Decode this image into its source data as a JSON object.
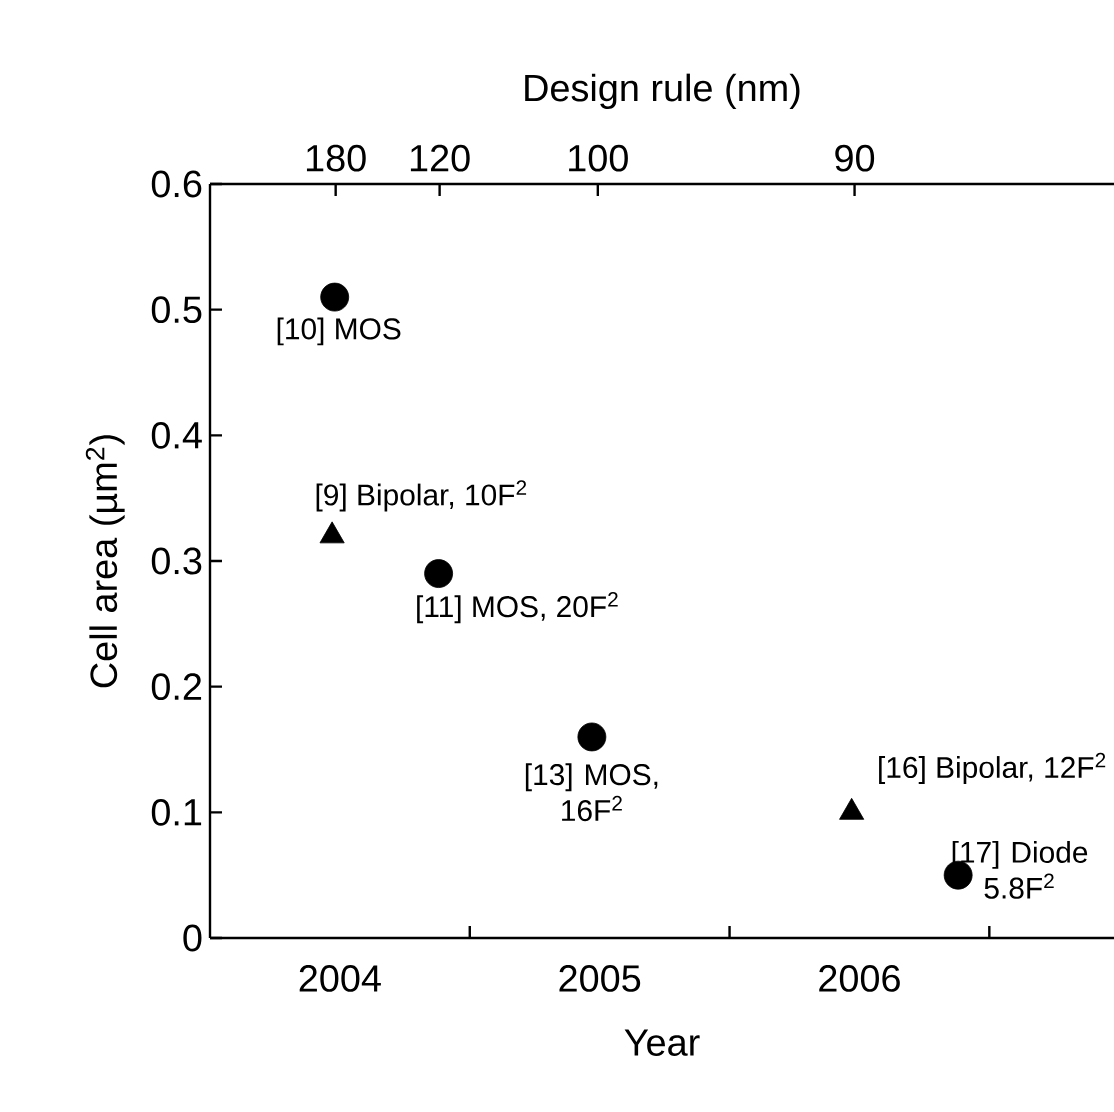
{
  "chart_data": {
    "type": "scatter",
    "xlabel": "Year",
    "ylabel": "Cell area (µm$^{2}$)",
    "x2label": "Design rule (nm)",
    "xlim": [
      2004,
      2007.48
    ],
    "ylim": [
      0,
      0.6
    ],
    "xticks": [
      {
        "value": 2005,
        "label": null
      },
      {
        "value": 2006,
        "label": null
      },
      {
        "value": 2007,
        "label": null
      },
      {
        "value": 2004.5,
        "label": "2004"
      },
      {
        "value": 2005.5,
        "label": "2005"
      },
      {
        "value": 2006.5,
        "label": "2006"
      }
    ],
    "yticks": [
      0,
      0.1,
      0.2,
      0.3,
      0.4,
      0.5,
      0.6
    ],
    "grid": false,
    "legend": false,
    "series": [
      {
        "color": "#000000",
        "marker": "circle",
        "x": [
          2004.48,
          2004.88,
          2005.47,
          2006.88
        ],
        "values": [
          0.51,
          0.29,
          0.16,
          0.05
        ]
      },
      {
        "color": "#000000",
        "marker": "triangle",
        "x": [
          2004.47,
          2006.47
        ],
        "values": [
          0.32,
          0.1
        ]
      }
    ],
    "annotations": [
      {
        "text": "[10] MOS",
        "x": 2004.48,
        "y": 0.51
      },
      {
        "text": "[9] Bipolar, 10F$^{2}$",
        "x": 2004.47,
        "y": 0.32
      },
      {
        "text": "[11] MOS, 20F$^{2}$",
        "x": 2004.88,
        "y": 0.29
      },
      {
        "text": "[13] MOS, 16F$^{2}$",
        "x": 2005.47,
        "y": 0.16
      },
      {
        "text": "[16] Bipolar, 12F$^{2}$",
        "x": 2006.47,
        "y": 0.1
      },
      {
        "text": "[17] Diode 5.8F$^{2}$",
        "x": 2006.88,
        "y": 0.05
      },
      "180",
      "120",
      "100",
      "90"
    ]
  }
}
